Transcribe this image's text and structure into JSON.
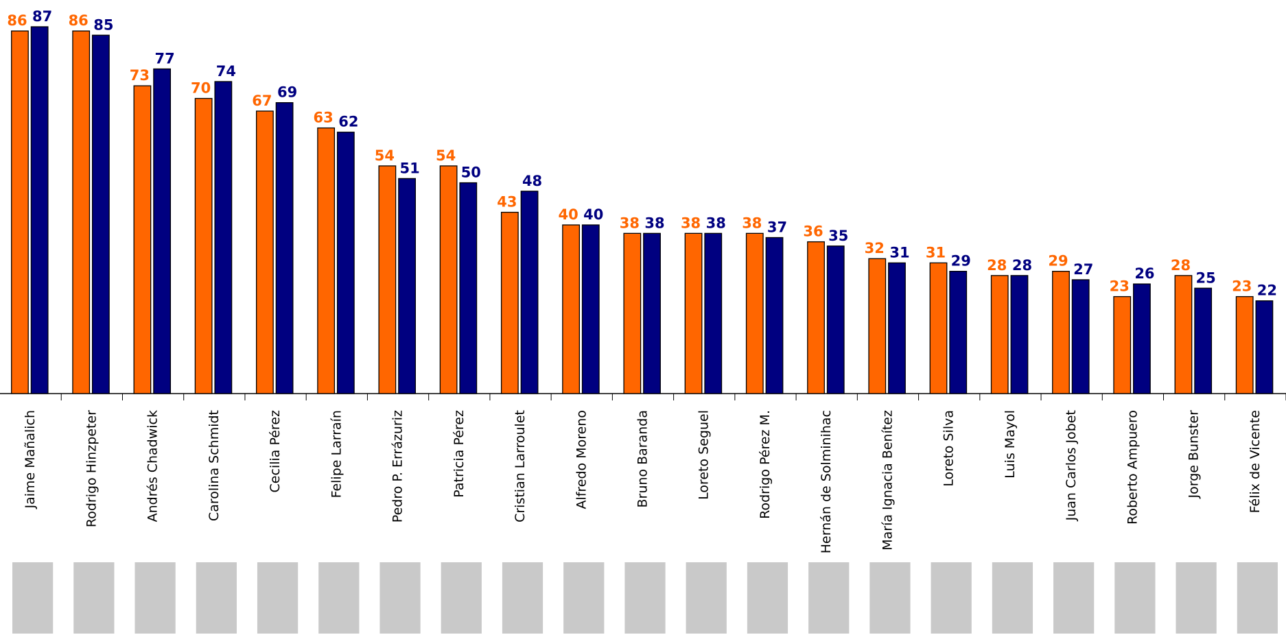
{
  "chart_data": {
    "type": "bar",
    "categories": [
      "Jaime Mañalich",
      "Rodrigo Hinzpeter",
      "Andrés Chadwick",
      "Carolina Schmidt",
      "Cecilia Pérez",
      "Felipe Larraín",
      "Pedro P. Errázuriz",
      "Patricia Pérez",
      "Cristian Larroulet",
      "Alfredo Moreno",
      "Bruno Baranda",
      "Loreto Seguel",
      "Rodrigo Pérez M.",
      "Hernán de Solminihac",
      "María Ignacia Benítez",
      "Loreto Silva",
      "Luis Mayol",
      "Juan Carlos Jobet",
      "Roberto Ampuero",
      "Jorge Bunster",
      "Félix de Vicente"
    ],
    "series": [
      {
        "color": "#ff6600",
        "values": [
          86,
          86,
          73,
          70,
          67,
          63,
          54,
          54,
          43,
          40,
          38,
          38,
          38,
          36,
          32,
          31,
          28,
          29,
          23,
          28,
          23
        ]
      },
      {
        "color": "#000080",
        "values": [
          87,
          85,
          77,
          74,
          69,
          62,
          51,
          50,
          48,
          40,
          38,
          38,
          37,
          35,
          31,
          29,
          28,
          27,
          26,
          25,
          22
        ]
      }
    ]
  }
}
